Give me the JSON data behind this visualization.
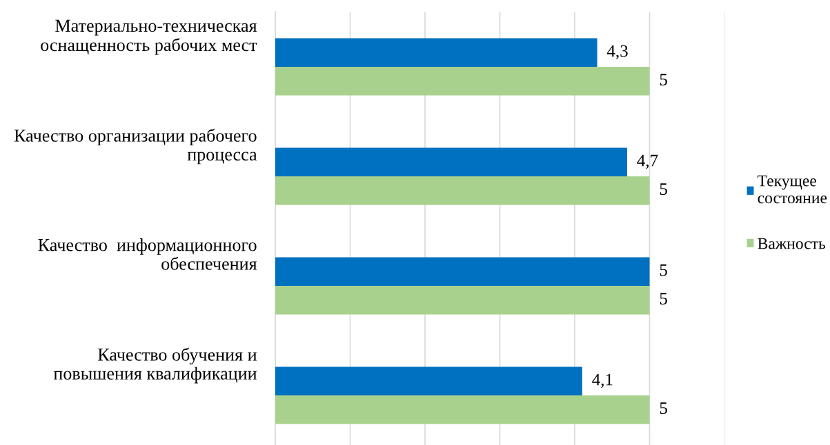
{
  "chart_data": {
    "type": "bar",
    "orientation": "horizontal",
    "categories": [
      "Материально-техническая\nоснащенность рабочих мест",
      "Качество организации рабочего\nпроцесса",
      "Качество  информационного\nобеспечения",
      "Качество обучения и\nповышения квалификации"
    ],
    "series": [
      {
        "name": "Текущее\nсостояние",
        "color": "#0070c0",
        "values": [
          4.3,
          4.7,
          5,
          4.1
        ],
        "value_labels": [
          "4,3",
          "4,7",
          "5",
          "4,1"
        ]
      },
      {
        "name": "Важность",
        "color": "#a9d18e",
        "values": [
          5,
          5,
          5,
          5
        ],
        "value_labels": [
          "5",
          "5",
          "5",
          "5"
        ]
      }
    ],
    "xlim": [
      0,
      6
    ],
    "xticks": [
      {
        "value": 0,
        "label": null
      },
      {
        "value": 1,
        "label": null
      },
      {
        "value": 2,
        "label": null
      },
      {
        "value": 3,
        "label": null
      },
      {
        "value": 4,
        "label": null
      },
      {
        "value": 5,
        "label": null
      },
      {
        "value": 6,
        "label": null
      }
    ],
    "grid": "x",
    "legend": "right",
    "tick_labels": "y"
  }
}
